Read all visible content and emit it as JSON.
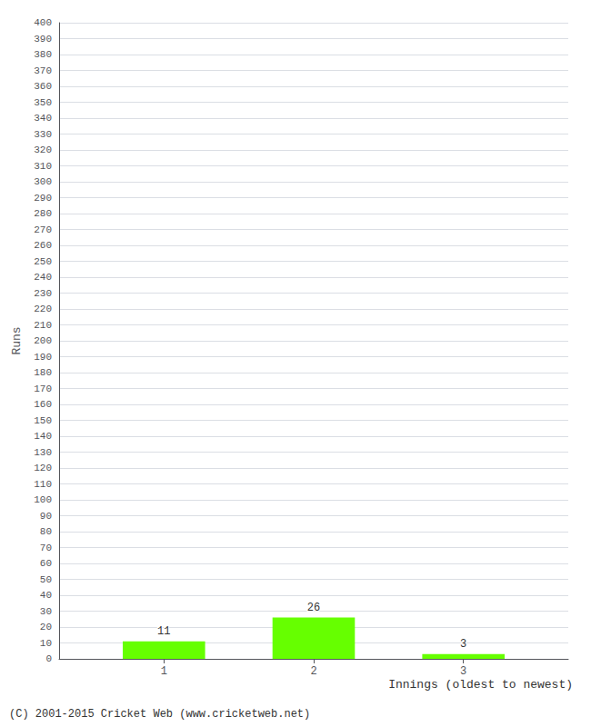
{
  "chart_data": {
    "type": "bar",
    "x": [
      1,
      2,
      3
    ],
    "values": [
      11,
      26,
      3
    ],
    "color": "#66ff00",
    "xlabel": "Innings (oldest to newest)",
    "ylabel": "Runs",
    "xlim": [
      0.3,
      3.7
    ],
    "xticks": [
      1,
      2,
      3
    ],
    "ylim": [
      0,
      400
    ],
    "yticks": [
      0,
      10,
      20,
      30,
      40,
      50,
      60,
      70,
      80,
      90,
      100,
      110,
      120,
      130,
      140,
      150,
      160,
      170,
      180,
      190,
      200,
      210,
      220,
      230,
      240,
      250,
      260,
      270,
      280,
      290,
      300,
      310,
      320,
      330,
      340,
      350,
      360,
      370,
      380,
      390,
      400
    ],
    "grid": true,
    "data_labels": true,
    "annotations": [
      "(C) 2001-2015 Cricket Web (www.cricketweb.net)"
    ]
  }
}
